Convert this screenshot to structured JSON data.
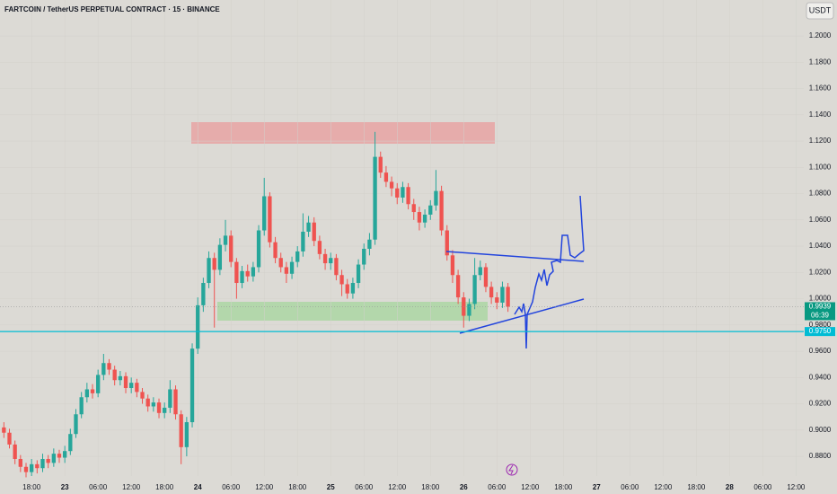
{
  "chart_data": {
    "type": "candlestick",
    "title": "FARTCOIN / TetherUS PERPETUAL CONTRACT · 15 · BINANCE",
    "currency": "USDT",
    "up_color": "#26a69a",
    "down_color": "#ef5350",
    "x": [
      -11,
      -10,
      -9,
      -8,
      -7,
      -6,
      -5,
      -4,
      -3,
      -2,
      -1,
      0,
      1,
      2,
      3,
      4,
      5,
      6,
      7,
      8,
      9,
      10,
      11,
      12,
      13,
      14,
      15,
      16,
      17,
      18,
      19,
      20,
      21,
      22,
      23,
      24,
      25,
      26,
      27,
      28,
      29,
      30,
      31,
      32,
      33,
      34,
      35,
      36,
      37,
      38,
      39,
      40,
      41,
      42,
      43,
      44,
      45,
      46,
      47,
      48,
      49,
      50,
      51,
      52,
      53,
      54,
      55,
      56,
      57,
      58,
      59,
      60,
      61,
      62,
      63,
      64,
      65,
      66,
      67,
      68,
      69,
      70,
      71,
      72,
      73,
      74,
      75,
      76,
      77,
      78,
      79,
      80
    ],
    "open": [
      0.902,
      0.898,
      0.889,
      0.878,
      0.872,
      0.868,
      0.874,
      0.871,
      0.878,
      0.875,
      0.882,
      0.879,
      0.884,
      0.897,
      0.912,
      0.925,
      0.931,
      0.928,
      0.942,
      0.951,
      0.946,
      0.938,
      0.941,
      0.932,
      0.936,
      0.929,
      0.924,
      0.918,
      0.921,
      0.913,
      0.917,
      0.931,
      0.912,
      0.887,
      0.906,
      0.962,
      0.995,
      1.012,
      1.031,
      1.022,
      1.041,
      1.048,
      1.028,
      1.012,
      1.021,
      1.017,
      1.024,
      1.052,
      1.078,
      1.043,
      1.031,
      1.024,
      1.019,
      1.028,
      1.036,
      1.051,
      1.058,
      1.044,
      1.034,
      1.027,
      1.031,
      1.018,
      1.011,
      1.004,
      1.012,
      1.026,
      1.038,
      1.045,
      1.108,
      1.096,
      1.089,
      1.084,
      1.077,
      1.085,
      1.072,
      1.066,
      1.058,
      1.064,
      1.071,
      1.082,
      1.052,
      1.033,
      1.018,
      1.001,
      0.987,
      0.996,
      1.018,
      1.024,
      1.009,
      1.001,
      0.997,
      1.009
    ],
    "high": [
      0.906,
      0.901,
      0.892,
      0.881,
      0.875,
      0.878,
      0.877,
      0.882,
      0.881,
      0.886,
      0.885,
      0.888,
      0.901,
      0.916,
      0.929,
      0.936,
      0.935,
      0.946,
      0.958,
      0.954,
      0.949,
      0.945,
      0.944,
      0.94,
      0.939,
      0.932,
      0.927,
      0.925,
      0.924,
      0.921,
      0.938,
      0.934,
      0.915,
      0.91,
      0.966,
      1.001,
      1.016,
      1.036,
      1.035,
      1.046,
      1.06,
      1.052,
      1.031,
      1.025,
      1.026,
      1.028,
      1.056,
      1.092,
      1.081,
      1.047,
      1.035,
      1.028,
      1.032,
      1.04,
      1.065,
      1.063,
      1.062,
      1.048,
      1.038,
      1.035,
      1.034,
      1.022,
      1.015,
      1.016,
      1.03,
      1.042,
      1.05,
      1.127,
      1.112,
      1.101,
      1.093,
      1.088,
      1.089,
      1.088,
      1.076,
      1.07,
      1.068,
      1.075,
      1.098,
      1.086,
      1.056,
      1.037,
      1.022,
      1.005,
      1.0,
      1.031,
      1.029,
      1.027,
      1.013,
      1.005,
      1.013,
      1.012
    ],
    "low": [
      0.894,
      0.886,
      0.874,
      0.868,
      0.864,
      0.865,
      0.867,
      0.868,
      0.871,
      0.872,
      0.875,
      0.875,
      0.881,
      0.894,
      0.909,
      0.921,
      0.924,
      0.925,
      0.938,
      0.942,
      0.934,
      0.934,
      0.928,
      0.928,
      0.925,
      0.92,
      0.914,
      0.914,
      0.909,
      0.909,
      0.913,
      0.908,
      0.874,
      0.88,
      0.902,
      0.958,
      0.99,
      1.008,
      0.978,
      1.018,
      1.036,
      1.024,
      1.0,
      1.008,
      1.013,
      1.013,
      1.02,
      1.048,
      1.039,
      1.027,
      1.02,
      1.012,
      1.015,
      1.024,
      1.032,
      1.047,
      1.04,
      1.03,
      1.022,
      1.022,
      1.014,
      1.002,
      1.0,
      1.0,
      1.008,
      1.022,
      1.033,
      1.041,
      1.092,
      1.085,
      1.078,
      1.072,
      1.073,
      1.068,
      1.06,
      1.052,
      1.054,
      1.06,
      1.067,
      1.048,
      1.029,
      1.012,
      0.996,
      0.978,
      0.983,
      0.992,
      1.014,
      1.005,
      0.996,
      0.992,
      0.993,
      0.99
    ],
    "close": [
      0.898,
      0.889,
      0.878,
      0.872,
      0.868,
      0.874,
      0.871,
      0.878,
      0.875,
      0.882,
      0.879,
      0.884,
      0.897,
      0.912,
      0.925,
      0.931,
      0.928,
      0.942,
      0.951,
      0.946,
      0.938,
      0.941,
      0.932,
      0.936,
      0.929,
      0.924,
      0.918,
      0.921,
      0.913,
      0.917,
      0.931,
      0.912,
      0.887,
      0.906,
      0.962,
      0.995,
      1.012,
      1.031,
      1.022,
      1.041,
      1.048,
      1.028,
      1.012,
      1.021,
      1.017,
      1.024,
      1.052,
      1.078,
      1.043,
      1.031,
      1.024,
      1.019,
      1.028,
      1.036,
      1.051,
      1.058,
      1.044,
      1.034,
      1.027,
      1.031,
      1.018,
      1.011,
      1.004,
      1.012,
      1.026,
      1.038,
      1.045,
      1.108,
      1.096,
      1.089,
      1.084,
      1.077,
      1.085,
      1.072,
      1.066,
      1.058,
      1.064,
      1.071,
      1.082,
      1.052,
      1.033,
      1.018,
      1.001,
      0.987,
      0.996,
      1.018,
      1.024,
      1.009,
      1.001,
      0.997,
      1.009,
      0.9939
    ],
    "xlim": [
      -11.7,
      133.4
    ],
    "xticks": [
      {
        "value": -6,
        "label": "18:00"
      },
      {
        "value": 0,
        "label": "23"
      },
      {
        "value": 6,
        "label": "06:00"
      },
      {
        "value": 12,
        "label": "12:00"
      },
      {
        "value": 18,
        "label": "18:00"
      },
      {
        "value": 24,
        "label": "24"
      },
      {
        "value": 30,
        "label": "06:00"
      },
      {
        "value": 36,
        "label": "12:00"
      },
      {
        "value": 42,
        "label": "18:00"
      },
      {
        "value": 48,
        "label": "25"
      },
      {
        "value": 54,
        "label": "06:00"
      },
      {
        "value": 60,
        "label": "12:00"
      },
      {
        "value": 66,
        "label": "18:00"
      },
      {
        "value": 72,
        "label": "26"
      },
      {
        "value": 78,
        "label": "06:00"
      },
      {
        "value": 84,
        "label": "12:00"
      },
      {
        "value": 90,
        "label": "18:00"
      },
      {
        "value": 96,
        "label": "27"
      },
      {
        "value": 102,
        "label": "06:00"
      },
      {
        "value": 108,
        "label": "12:00"
      },
      {
        "value": 114,
        "label": "18:00"
      },
      {
        "value": 120,
        "label": "28"
      },
      {
        "value": 126,
        "label": "06:00"
      },
      {
        "value": 132,
        "label": "12:00"
      }
    ],
    "ylim": [
      0.865,
      1.2274
    ],
    "yticks": [
      {
        "value": 1.2,
        "label": "1.2000"
      },
      {
        "value": 1.18,
        "label": "1.1800"
      },
      {
        "value": 1.16,
        "label": "1.1600"
      },
      {
        "value": 1.14,
        "label": "1.1400"
      },
      {
        "value": 1.12,
        "label": "1.1200"
      },
      {
        "value": 1.1,
        "label": "1.1000"
      },
      {
        "value": 1.08,
        "label": "1.0800"
      },
      {
        "value": 1.06,
        "label": "1.0600"
      },
      {
        "value": 1.04,
        "label": "1.0400"
      },
      {
        "value": 1.02,
        "label": "1.0200"
      },
      {
        "value": 1.0,
        "label": "1.0000"
      },
      {
        "value": 0.98,
        "label": "0.9800"
      },
      {
        "value": 0.96,
        "label": "0.9600"
      },
      {
        "value": 0.94,
        "label": "0.9400"
      },
      {
        "value": 0.92,
        "label": "0.9200"
      },
      {
        "value": 0.9,
        "label": "0.9000"
      },
      {
        "value": 0.88,
        "label": "0.8800"
      }
    ],
    "price_lines": [
      {
        "value": 0.975,
        "label": "0.9750",
        "color": "#00bcd4"
      },
      {
        "value": 0.9939,
        "label": "0.9939",
        "color": "#089981"
      }
    ],
    "countdown": "06:39"
  }
}
